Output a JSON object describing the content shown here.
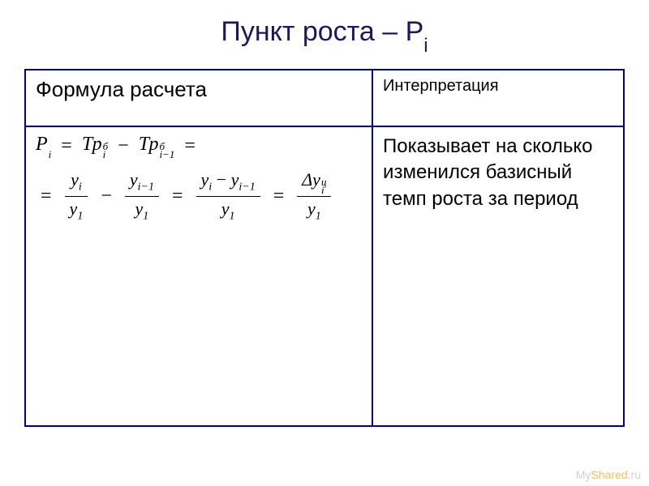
{
  "title": {
    "main": "Пункт роста – Р",
    "subscript": "i"
  },
  "table": {
    "border_color": "#00008b",
    "headers": {
      "left": "Формула расчета",
      "right": "Интерпретация"
    },
    "body": {
      "interpretation": "Показывает на сколько изменился базисный темп роста за период"
    },
    "formula": {
      "line1": {
        "P": "P",
        "P_sub": "i",
        "eq1": "=",
        "Tp1": "Тр",
        "Tp1_sup": "б",
        "Tp1_sub": "i",
        "minus1": "−",
        "Tp2": "Тр",
        "Tp2_sup": "б",
        "Tp2_sub": "i−1",
        "eq_end": "="
      },
      "line2": {
        "eq_start": "=",
        "f1_num": "y",
        "f1_num_sub": "i",
        "f1_den": "y",
        "f1_den_sub": "1",
        "minus": "−",
        "f2_num": "y",
        "f2_num_sub": "i−1",
        "f2_den": "y",
        "f2_den_sub": "1",
        "eq2": "=",
        "f3_num_a": "y",
        "f3_num_a_sub": "i",
        "f3_num_minus": "−",
        "f3_num_b": "y",
        "f3_num_b_sub": "i−1",
        "f3_den": "y",
        "f3_den_sub": "1",
        "eq3": "=",
        "f4_num": "Δy",
        "f4_num_sup": "ц",
        "f4_num_sub": "i",
        "f4_den": "y",
        "f4_den_sub": "1"
      }
    }
  },
  "colors": {
    "title_color": "#1a1a5a",
    "text_color": "#000000",
    "background": "#ffffff"
  },
  "watermark": {
    "part1": "My",
    "part2": "Shared",
    "part3": ".ru"
  }
}
